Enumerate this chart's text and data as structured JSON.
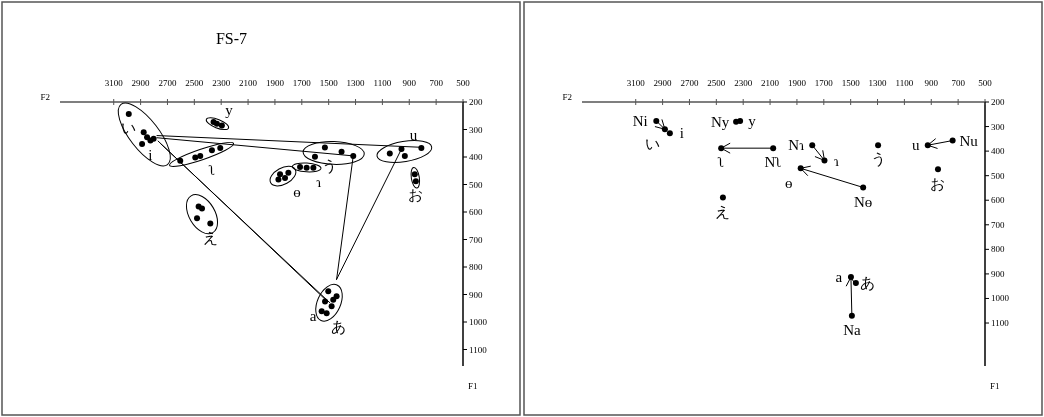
{
  "chart_data": [
    {
      "type": "scatter",
      "title": "FS-7",
      "xlabel": "F2",
      "ylabel": "F1",
      "marker": "circle",
      "grid": false,
      "xlim": [
        3500,
        500
      ],
      "xticks": [
        3100,
        2900,
        2700,
        2500,
        2300,
        2100,
        1900,
        1700,
        1500,
        1300,
        1100,
        900,
        700,
        500
      ],
      "ylim": [
        1160,
        200
      ],
      "yticks": [
        200,
        300,
        400,
        500,
        600,
        700,
        800,
        900,
        1000,
        1100
      ],
      "series": [
        {
          "type": "scatter",
          "color": "#000000",
          "x": [
            2988,
            2877,
            2852,
            2827,
            2889,
            2803
          ],
          "values": [
            244,
            310,
            328,
            340,
            353,
            334
          ]
        },
        {
          "type": "scatter",
          "color": "#000000",
          "x": [
            2357,
            2332,
            2295
          ],
          "values": [
            273,
            279,
            285
          ]
        },
        {
          "type": "scatter",
          "color": "#000000",
          "x": [
            2605,
            2493,
            2456,
            2369,
            2307
          ],
          "values": [
            414,
            402,
            396,
            375,
            367
          ]
        },
        {
          "type": "scatter",
          "color": "#000000",
          "x": [
            2468,
            2443,
            2480,
            2381
          ],
          "values": [
            580,
            587,
            623,
            642
          ]
        },
        {
          "type": "scatter",
          "color": "#000000",
          "x": [
            1862,
            1825,
            1874,
            1800
          ],
          "values": [
            463,
            476,
            482,
            457
          ]
        },
        {
          "type": "scatter",
          "color": "#000000",
          "x": [
            1713,
            1664,
            1614
          ],
          "values": [
            436,
            439,
            439
          ]
        },
        {
          "type": "scatter",
          "color": "#000000",
          "x": [
            1602,
            1528,
            1404,
            1317
          ],
          "values": [
            399,
            365,
            381,
            396
          ]
        },
        {
          "type": "scatter",
          "color": "#000000",
          "x": [
            1045,
            958,
            933,
            810
          ],
          "values": [
            387,
            371,
            396,
            367
          ]
        },
        {
          "type": "scatter",
          "color": "#000000",
          "x": [
            859,
            851
          ],
          "values": [
            463,
            488
          ]
        },
        {
          "type": "scatter",
          "color": "#000000",
          "x": [
            1503,
            1527,
            1478,
            1466,
            1552,
            1515,
            1441
          ],
          "values": [
            888,
            925,
            943,
            919,
            961,
            968,
            906
          ]
        },
        {
          "type": "line",
          "color": "#000000",
          "x": [
            2750,
            1491
          ],
          "values": [
            352,
            930
          ]
        },
        {
          "type": "line",
          "marker": "none",
          "color": "#000000",
          "x": [
            2770,
            1510
          ],
          "values": [
            342,
            925
          ]
        },
        {
          "type": "line",
          "marker": "none",
          "color": "#000000",
          "x": [
            2778,
            797
          ],
          "values": [
            322,
            365
          ]
        },
        {
          "type": "line",
          "marker": "none",
          "color": "#000000",
          "x": [
            2778,
            1317
          ],
          "values": [
            330,
            396
          ]
        },
        {
          "type": "line",
          "marker": "none",
          "color": "#000000",
          "x": [
            1441,
            1317
          ],
          "values": [
            845,
            396
          ]
        },
        {
          "type": "line",
          "marker": "none",
          "color": "#000000",
          "x": [
            1441,
            958
          ],
          "values": [
            845,
            371
          ]
        }
      ],
      "annotations": [
        {
          "text": "い",
          "x": 2988,
          "y": 244
        },
        {
          "text": "i",
          "x": 2827,
          "y": 340
        },
        {
          "text": "y",
          "x": 2332,
          "y": 279
        },
        {
          "text": "ʅ",
          "x": 2456,
          "y": 396
        },
        {
          "text": "え",
          "x": 2381,
          "y": 642
        },
        {
          "text": "ɵ",
          "x": 1825,
          "y": 476
        },
        {
          "text": "ɿ",
          "x": 1664,
          "y": 439
        },
        {
          "text": "う",
          "x": 1404,
          "y": 381
        },
        {
          "text": "u",
          "x": 958,
          "y": 371
        },
        {
          "text": "お",
          "x": 851,
          "y": 488
        },
        {
          "text": "a",
          "x": 1527,
          "y": 925
        },
        {
          "text": "あ",
          "x": 1515,
          "y": 968
        }
      ]
    },
    {
      "type": "scatter",
      "xlabel": "F2",
      "ylabel": "F1",
      "marker": "circle",
      "grid": false,
      "xlim": [
        3500,
        500
      ],
      "xticks": [
        3100,
        2900,
        2700,
        2500,
        2300,
        2100,
        1900,
        1700,
        1500,
        1300,
        1100,
        900,
        700,
        500
      ],
      "ylim": [
        1275,
        200
      ],
      "yticks": [
        200,
        300,
        400,
        500,
        600,
        700,
        800,
        900,
        1000,
        1100
      ],
      "series": [
        {
          "type": "scatter",
          "color": "#000000",
          "x": [
            2947,
            2883,
            2846,
            2353,
            2323,
            2077,
            2464,
            1786,
            1695,
            1872,
            1407,
            1296,
            926,
            741,
            850,
            2451,
            1498,
            1461,
            1491
          ],
          "values": [
            277,
            311,
            327,
            280,
            277,
            388,
            388,
            376,
            438,
            470,
            548,
            376,
            376,
            357,
            474,
            589,
            913,
            937,
            1070
          ]
        },
        {
          "type": "line",
          "marker": "none",
          "color": "#000000",
          "x": [
            2947,
            2883
          ],
          "values": [
            277,
            311
          ]
        },
        {
          "type": "line",
          "marker": "none",
          "color": "#000000",
          "x": [
            2077,
            2464
          ],
          "values": [
            388,
            388
          ]
        },
        {
          "type": "line",
          "marker": "none",
          "color": "#000000",
          "x": [
            1786,
            1695
          ],
          "values": [
            376,
            438
          ]
        },
        {
          "type": "line",
          "marker": "none",
          "color": "#000000",
          "x": [
            1407,
            1872
          ],
          "values": [
            548,
            470
          ]
        },
        {
          "type": "line",
          "marker": "none",
          "color": "#000000",
          "x": [
            741,
            926
          ],
          "values": [
            357,
            376
          ]
        },
        {
          "type": "line",
          "marker": "none",
          "color": "#000000",
          "x": [
            1491,
            1498
          ],
          "values": [
            1070,
            913
          ]
        }
      ],
      "annotations": [
        {
          "text": "Ni",
          "x": 2947,
          "y": 277
        },
        {
          "text": "い",
          "x": 2883,
          "y": 311
        },
        {
          "text": "i",
          "x": 2846,
          "y": 327
        },
        {
          "text": "Ny",
          "x": 2353,
          "y": 280
        },
        {
          "text": "y",
          "x": 2323,
          "y": 277
        },
        {
          "text": "ʅ",
          "x": 2464,
          "y": 388
        },
        {
          "text": "Nʅ",
          "x": 2077,
          "y": 388
        },
        {
          "text": "Nɿ",
          "x": 1786,
          "y": 376
        },
        {
          "text": "ɿ",
          "x": 1695,
          "y": 438
        },
        {
          "text": "ɵ",
          "x": 1872,
          "y": 470
        },
        {
          "text": "Nɵ",
          "x": 1407,
          "y": 548
        },
        {
          "text": "う",
          "x": 1296,
          "y": 376
        },
        {
          "text": "u",
          "x": 926,
          "y": 376
        },
        {
          "text": "Nu",
          "x": 741,
          "y": 357
        },
        {
          "text": "お",
          "x": 850,
          "y": 474
        },
        {
          "text": "え",
          "x": 2451,
          "y": 589
        },
        {
          "text": "a",
          "x": 1498,
          "y": 913
        },
        {
          "text": "あ",
          "x": 1461,
          "y": 937
        },
        {
          "text": "Na",
          "x": 1491,
          "y": 1070
        }
      ]
    }
  ]
}
